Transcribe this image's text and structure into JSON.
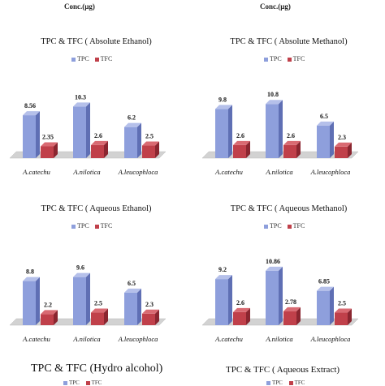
{
  "top_labels": [
    "Conc.(µg)",
    "Conc.(µg)"
  ],
  "colors": {
    "tpc": "#8e9fdc",
    "tpc_side": "#5f6fb4",
    "tpc_top": "#b5c0ea",
    "tfc": "#c0404a",
    "tfc_side": "#8a2630",
    "tfc_top": "#d96a72",
    "floor": "#d2d2d2"
  },
  "chart_data": [
    {
      "type": "bar",
      "title": "TPC & TFC ( Absolute Ethanol)",
      "categories": [
        "A.catechu",
        "A.nilotica",
        "A.leucophloca"
      ],
      "series": [
        {
          "name": "TPC",
          "values": [
            8.56,
            10.3,
            6.2
          ]
        },
        {
          "name": "TFC",
          "values": [
            2.35,
            2.6,
            2.5
          ]
        }
      ],
      "value_labels": [
        [
          "8.56",
          "10.3",
          "6.2"
        ],
        [
          "2.35",
          "2.6",
          "2.5"
        ]
      ],
      "legend": "top-left",
      "grid": false
    },
    {
      "type": "bar",
      "title": "TPC & TFC ( Absolute Methanol)",
      "categories": [
        "A.catechu",
        "A.nilotica",
        "A.leucophloca"
      ],
      "series": [
        {
          "name": "TPC",
          "values": [
            9.8,
            10.8,
            6.5
          ]
        },
        {
          "name": "TFC",
          "values": [
            2.6,
            2.6,
            2.3
          ]
        }
      ],
      "value_labels": [
        [
          "9.8",
          "10.8",
          "6.5"
        ],
        [
          "2.6",
          "2.6",
          "2.3"
        ]
      ],
      "legend": "top-left",
      "grid": false
    },
    {
      "type": "bar",
      "title": "TPC & TFC ( Aqueous Ethanol)",
      "categories": [
        "A.catechu",
        "A.nilotica",
        "A.leucophloca"
      ],
      "series": [
        {
          "name": "TPC",
          "values": [
            8.8,
            9.6,
            6.5
          ]
        },
        {
          "name": "TFC",
          "values": [
            2.2,
            2.5,
            2.3
          ]
        }
      ],
      "value_labels": [
        [
          "8.8",
          "9.6",
          "6.5"
        ],
        [
          "2.2",
          "2.5",
          "2.3"
        ]
      ],
      "legend": "top-left",
      "grid": false
    },
    {
      "type": "bar",
      "title": "TPC & TFC ( Aqueous Methanol)",
      "categories": [
        "A.catechu",
        "A.nilotica",
        "A.leucophloca"
      ],
      "series": [
        {
          "name": "TPC",
          "values": [
            9.2,
            10.86,
            6.85
          ]
        },
        {
          "name": "TFC",
          "values": [
            2.6,
            2.78,
            2.5
          ]
        }
      ],
      "value_labels": [
        [
          "9.2",
          "10.86",
          "6.85"
        ],
        [
          "2.6",
          "2.78",
          "2.5"
        ]
      ],
      "legend": "top-left",
      "grid": false
    }
  ],
  "bottom": {
    "left_title": "TPC & TFC (Hydro alcohol)",
    "right_title": "TPC & TFC ( Aqueous Extract)",
    "left_legend": [
      "TPC",
      "TFC"
    ],
    "right_legend": [
      "TPC",
      "TFC"
    ]
  }
}
